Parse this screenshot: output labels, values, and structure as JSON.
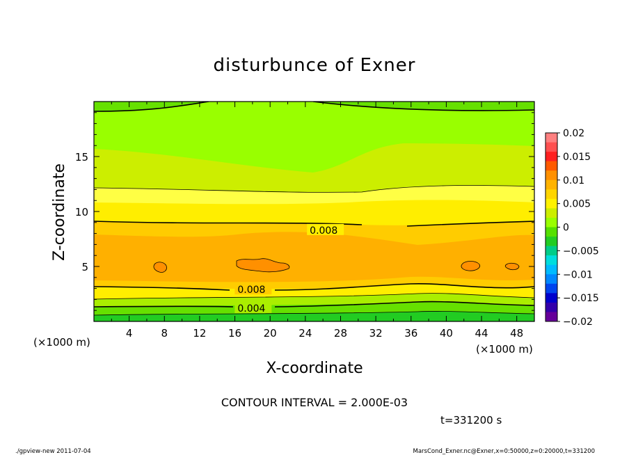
{
  "chart_data": {
    "type": "heatmap",
    "title": "disturbunce of Exner",
    "xlabel": "X-coordinate",
    "ylabel": "Z-coordinate",
    "x_unit": "(×1000 m)",
    "z_unit": "(×1000 m)",
    "xlim": [
      0,
      50
    ],
    "ylim": [
      0,
      20
    ],
    "x_ticks": [
      "4",
      "8",
      "12",
      "16",
      "20",
      "24",
      "28",
      "32",
      "36",
      "40",
      "44",
      "48"
    ],
    "y_ticks": [
      "5",
      "10",
      "15"
    ],
    "contour_labels": [
      {
        "text": "0.008",
        "x": 24.5,
        "z": 8.3
      },
      {
        "text": "0.008",
        "x": 16.3,
        "z": 2.9
      },
      {
        "text": "0.004",
        "x": 16.3,
        "z": 1.2
      }
    ],
    "colorbar": {
      "labels": [
        "0.02",
        "0.015",
        "0.01",
        "0.005",
        "0",
        "−0.005",
        "−0.01",
        "−0.015",
        "−0.02"
      ],
      "colors": [
        "#ff8080",
        "#ff5050",
        "#ff2020",
        "#ff5a00",
        "#ff9000",
        "#ffb300",
        "#ffd500",
        "#fff200",
        "#ccee00",
        "#99ff00",
        "#55e000",
        "#22cc22",
        "#00cc88",
        "#00dddd",
        "#00bbff",
        "#0088ff",
        "#0044ee",
        "#0000cc",
        "#3300aa",
        "#660099"
      ]
    },
    "bands_approx": [
      {
        "z": [
          19.3,
          20
        ],
        "value_range": [
          0.004,
          0.006
        ]
      },
      {
        "z": [
          15.5,
          19.3
        ],
        "value_range": [
          0.004,
          0.006
        ]
      },
      {
        "z": [
          12.3,
          15.5
        ],
        "value_range": [
          0.006,
          0.008
        ]
      },
      {
        "z": [
          9.3,
          12.3
        ],
        "value_range": [
          0.008,
          0.01
        ]
      },
      {
        "z": [
          3.0,
          9.3
        ],
        "value_range": [
          0.01,
          0.012
        ]
      },
      {
        "z": [
          1.0,
          3.0
        ],
        "value_range": [
          0.004,
          0.008
        ]
      },
      {
        "z": [
          0,
          1.0
        ],
        "value_range": [
          0.0,
          0.004
        ]
      }
    ],
    "contour_interval": "CONTOUR INTERVAL = 2.000E-03"
  },
  "annotations": {
    "time": "t=331200 s",
    "footer_left": "./gpview-new   2011-07-04",
    "footer_right": "MarsCond_Exner.nc@Exner,x=0:50000,z=0:20000,t=331200"
  }
}
